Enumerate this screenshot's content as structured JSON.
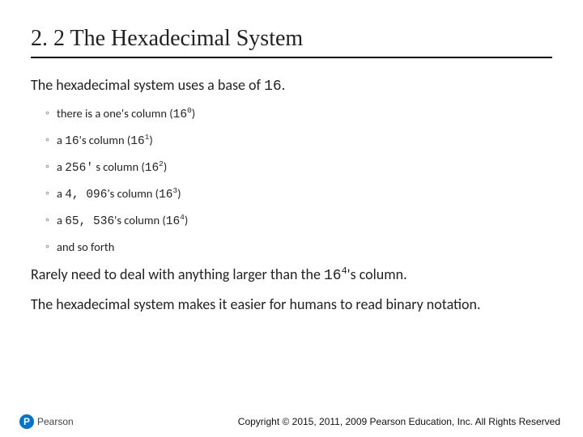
{
  "title": "2. 2 The Hexadecimal System",
  "intro_pre": "The hexadecimal system uses a base of ",
  "intro_base": "16",
  "intro_post": ".",
  "bullets": [
    {
      "pre": "there is a one's column (",
      "mono": "16",
      "exp": "0",
      "post": ")"
    },
    {
      "pre": "a ",
      "mono": "16",
      "mid": "'s column (",
      "mono2": "16",
      "exp": "1",
      "post": ")"
    },
    {
      "pre": "a ",
      "mono": "256'",
      "mid": " s column (",
      "mono2": "16",
      "exp": "2",
      "post": ")"
    },
    {
      "pre": "a ",
      "mono": "4, 096",
      "mid": "'s column (",
      "mono2": "16",
      "exp": "3",
      "post": ")"
    },
    {
      "pre": "a ",
      "mono": "65, 536",
      "mid": "'s column (",
      "mono2": "16",
      "exp": "4",
      "post": ")"
    },
    {
      "pre": "and so forth"
    }
  ],
  "para1_pre": "Rarely need to deal with anything larger than the ",
  "para1_mono": "16",
  "para1_exp": "4",
  "para1_post": "'s   column.",
  "para2": "The hexadecimal system makes it easier for humans to read binary notation.",
  "logo_letter": "P",
  "logo_text": "Pearson",
  "copyright": "Copyright © 2015, 2011, 2009 Pearson Education, Inc. All Rights Reserved"
}
